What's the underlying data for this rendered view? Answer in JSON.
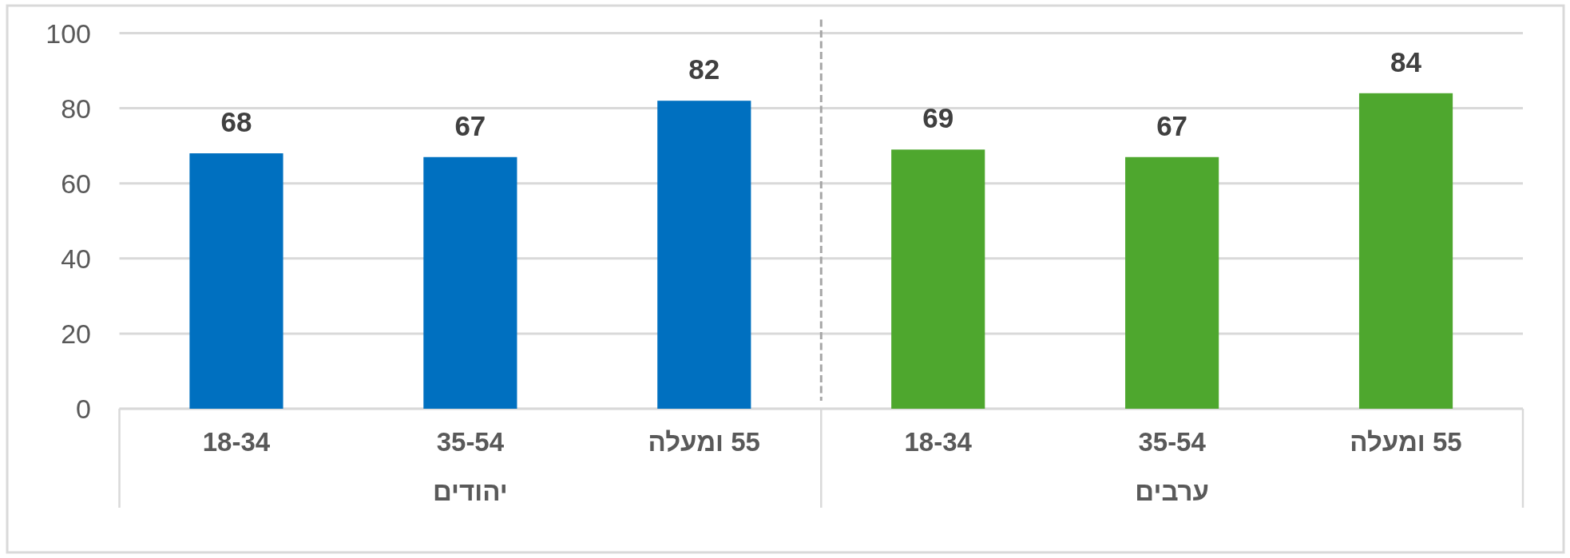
{
  "chart_data": [
    {
      "type": "bar",
      "xlabel": "יהודים",
      "categories": [
        "18-34",
        "35-54",
        "55 ומעלה"
      ],
      "values": [
        68,
        67,
        82
      ],
      "color": "#0070c0",
      "ylim": [
        0,
        100
      ],
      "yticks": [
        0,
        20,
        40,
        60,
        80,
        100
      ],
      "grid": "y",
      "data_labels": true
    },
    {
      "type": "bar",
      "xlabel": "ערבים",
      "categories": [
        "18-34",
        "35-54",
        "55 ומעלה"
      ],
      "values": [
        69,
        67,
        84
      ],
      "color": "#4ea72e",
      "ylim": [
        0,
        100
      ],
      "yticks": [
        0,
        20,
        40,
        60,
        80,
        100
      ],
      "grid": "y",
      "data_labels": true,
      "tick_labels": "x"
    }
  ]
}
